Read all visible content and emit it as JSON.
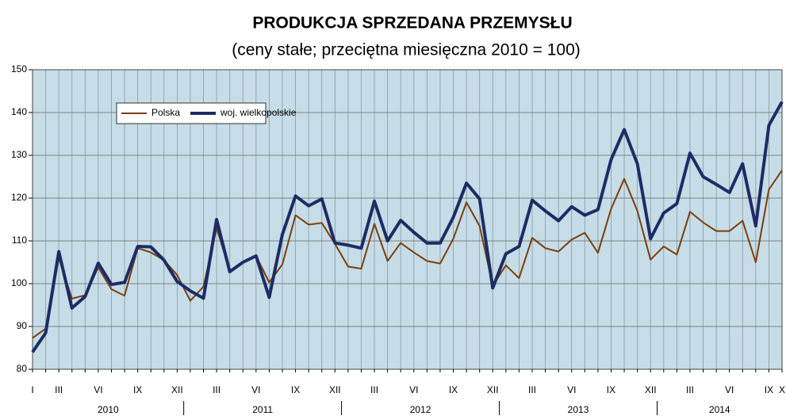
{
  "chart_data": {
    "type": "line",
    "title": "PRODUKCJA  SPRZEDANA  PRZEMYSŁU",
    "subtitle": "(ceny stałe; przeciętna miesięczna 2010 = 100)",
    "categories": [
      "I",
      null,
      "III",
      null,
      null,
      "VI",
      null,
      null,
      "IX",
      null,
      null,
      "XII",
      null,
      null,
      "III",
      null,
      null,
      "VI",
      null,
      null,
      "IX",
      null,
      null,
      "XII",
      null,
      null,
      "III",
      null,
      null,
      "VI",
      null,
      null,
      "IX",
      null,
      null,
      "XII",
      null,
      null,
      "III",
      null,
      null,
      "VI",
      null,
      null,
      "IX",
      null,
      null,
      "XII",
      null,
      null,
      "III",
      null,
      null,
      "VI",
      null,
      null,
      "IX",
      "X"
    ],
    "years": [
      "2010",
      "2011",
      "2012",
      "2013",
      "2014"
    ],
    "series": [
      {
        "name": "Polska",
        "color": "#7a3e0e",
        "width": 2,
        "values": [
          87.3,
          89.5,
          106,
          96.5,
          97.3,
          103.8,
          98.7,
          97.2,
          108.3,
          107.3,
          105.5,
          102,
          96,
          99.3,
          113,
          103,
          105,
          106.5,
          100.3,
          104.5,
          116,
          113.8,
          114.2,
          109.3,
          104,
          103.5,
          114,
          105.3,
          109.5,
          107.3,
          105.3,
          104.7,
          110.5,
          119,
          113.5,
          99.5,
          104.3,
          101.3,
          110.7,
          108.3,
          107.5,
          110.3,
          111.9,
          107.2,
          117.5,
          124.5,
          117,
          105.6,
          108.7,
          106.8,
          116.8,
          114.3,
          112.3,
          112.3,
          114.7,
          105,
          122,
          126.5
        ]
      },
      {
        "name": "woj. wielkopolskie",
        "color": "#1c2c66",
        "width": 4,
        "values": [
          84,
          88.5,
          107.5,
          94.3,
          97,
          104.8,
          99.8,
          100.3,
          108.7,
          108.6,
          105.5,
          100.5,
          98.3,
          96.6,
          115,
          102.8,
          105,
          106.5,
          96.8,
          111.5,
          120.5,
          118.2,
          119.8,
          109.5,
          109,
          108.3,
          119.3,
          110,
          114.8,
          112,
          109.5,
          109.5,
          115.5,
          123.5,
          119.8,
          99,
          107,
          108.7,
          119.5,
          117,
          114.7,
          118,
          116,
          117.3,
          129,
          136,
          128,
          110.5,
          116.5,
          118.7,
          130.5,
          125,
          123.2,
          121.3,
          128,
          113.5,
          137,
          142.5
        ]
      }
    ],
    "ylim": [
      80,
      150
    ],
    "yticks": [
      80,
      90,
      100,
      110,
      120,
      130,
      140,
      150
    ],
    "grid": true
  }
}
